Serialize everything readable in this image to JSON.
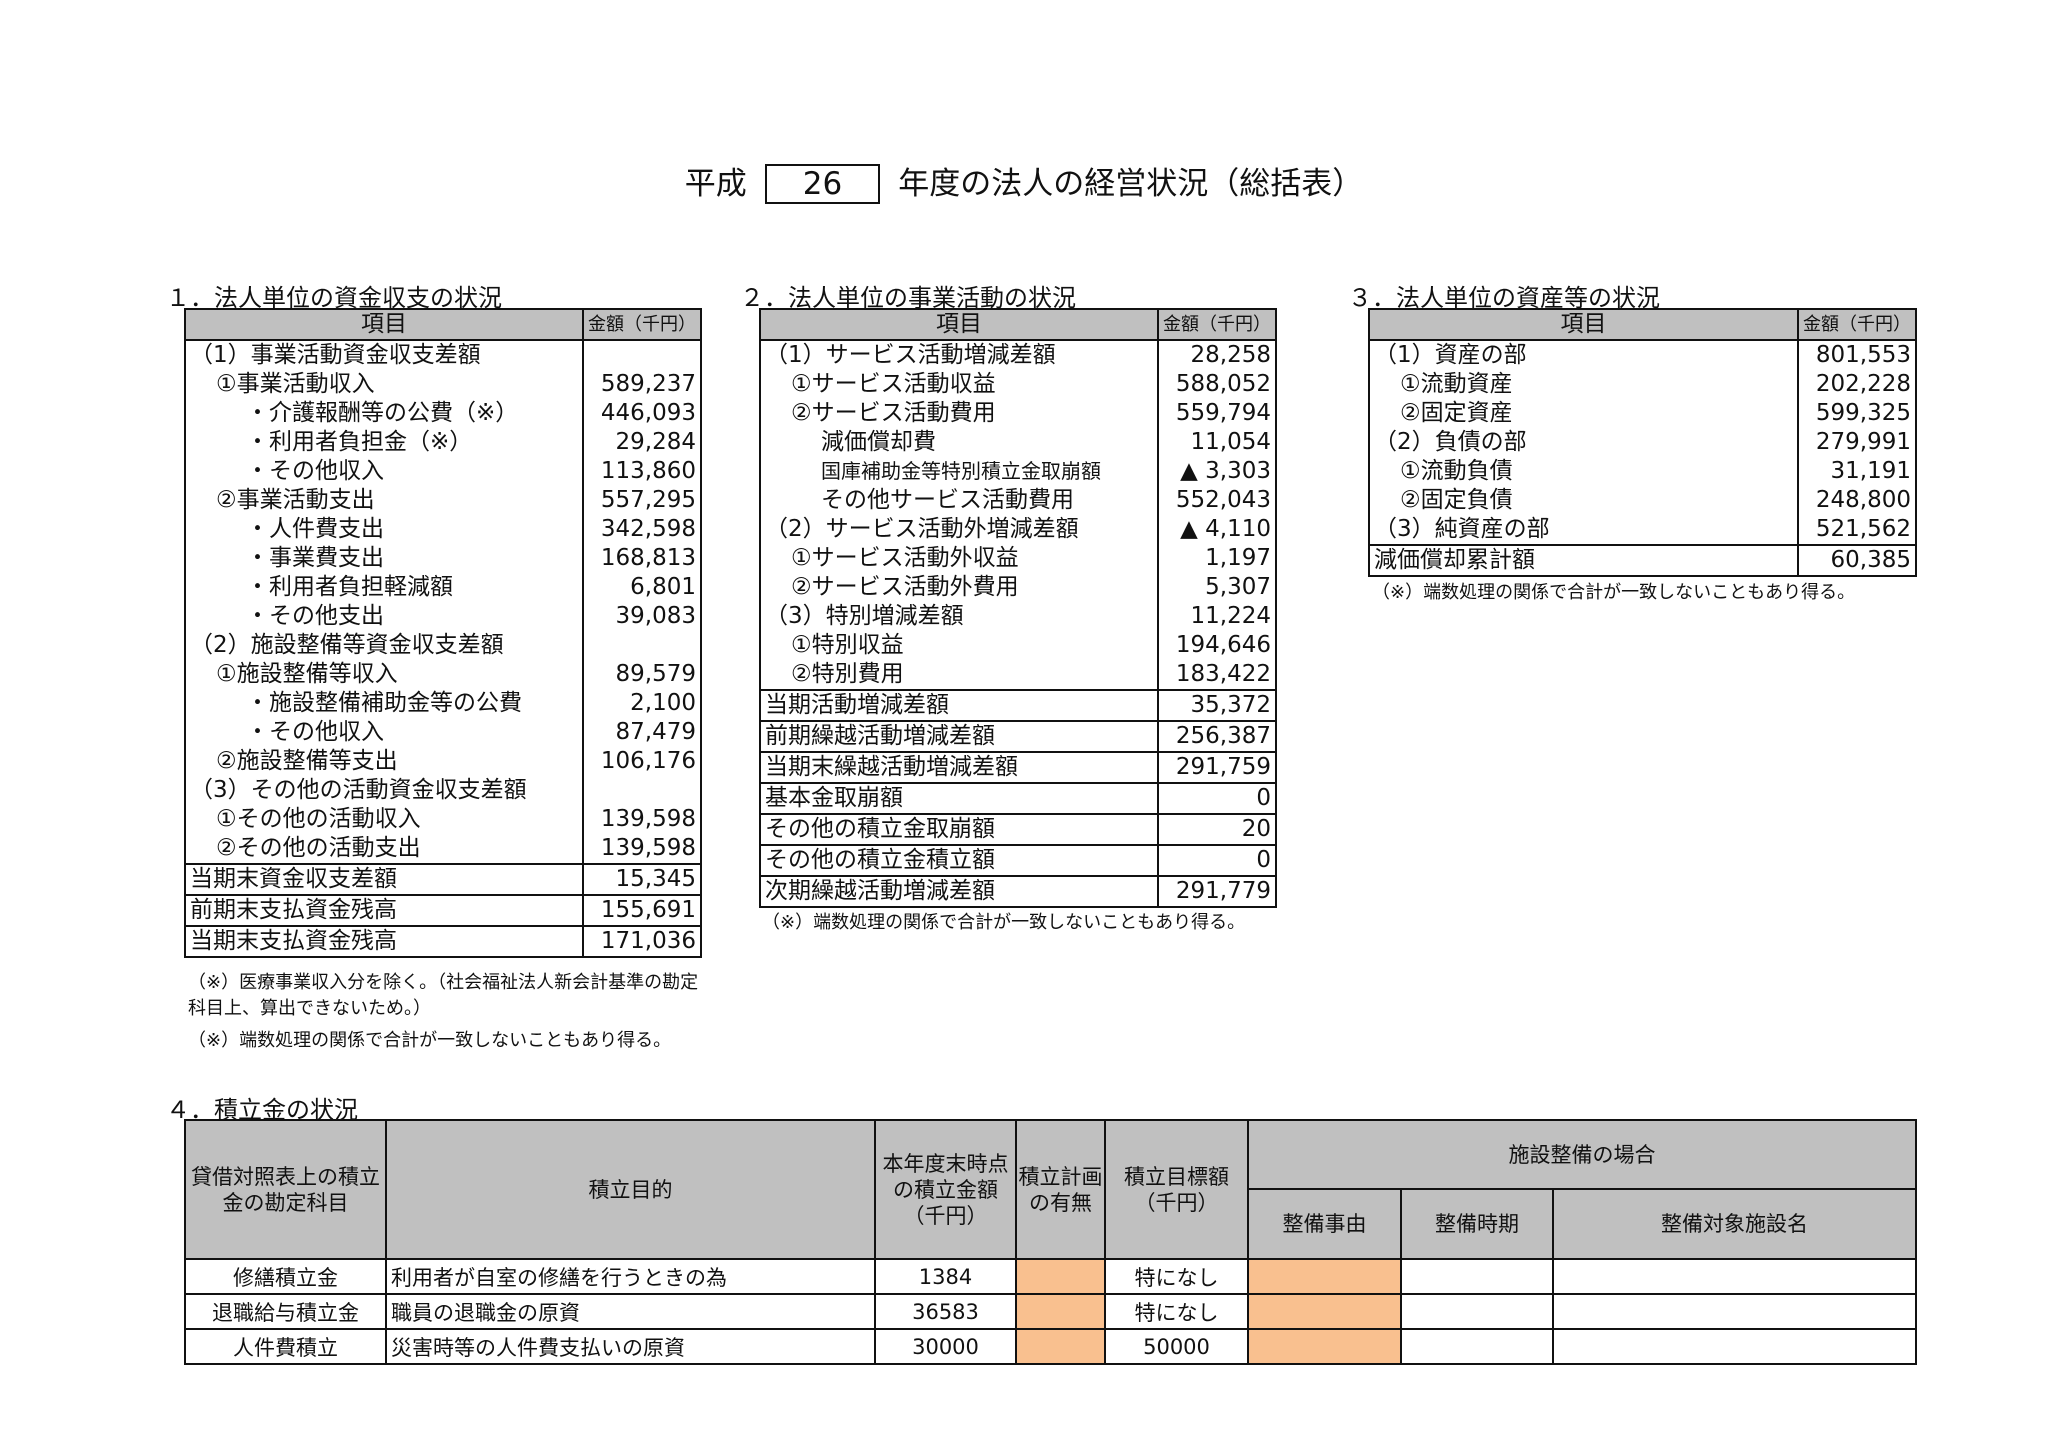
{
  "title": {
    "prefix": "平成",
    "year": "26",
    "suffix": "年度の法人の経営状況（総括表）"
  },
  "s1": {
    "heading": "１．法人単位の資金収支の状況",
    "col_item": "項目",
    "col_amount": "金額（千円）",
    "rows": [
      {
        "label": "（1）事業活動資金収支差額",
        "value": ""
      },
      {
        "label": "①事業活動収入",
        "value": "589,237"
      },
      {
        "label": "・介護報酬等の公費（※）",
        "value": "446,093"
      },
      {
        "label": "・利用者負担金（※）",
        "value": "29,284"
      },
      {
        "label": "・その他収入",
        "value": "113,860"
      },
      {
        "label": "②事業活動支出",
        "value": "557,295"
      },
      {
        "label": "・人件費支出",
        "value": "342,598"
      },
      {
        "label": "・事業費支出",
        "value": "168,813"
      },
      {
        "label": "・利用者負担軽減額",
        "value": "6,801"
      },
      {
        "label": "・その他支出",
        "value": "39,083"
      },
      {
        "label": "（2）施設整備等資金収支差額",
        "value": ""
      },
      {
        "label": "①施設整備等収入",
        "value": "89,579"
      },
      {
        "label": "・施設整備補助金等の公費",
        "value": "2,100"
      },
      {
        "label": "・その他収入",
        "value": "87,479"
      },
      {
        "label": "②施設整備等支出",
        "value": "106,176"
      },
      {
        "label": "（3）その他の活動資金収支差額",
        "value": ""
      },
      {
        "label": "①その他の活動収入",
        "value": "139,598"
      },
      {
        "label": "②その他の活動支出",
        "value": "139,598"
      },
      {
        "label": "当期末資金収支差額",
        "value": "15,345"
      },
      {
        "label": "前期末支払資金残高",
        "value": "155,691"
      },
      {
        "label": "当期末支払資金残高",
        "value": "171,036"
      }
    ],
    "note1": "（※）医療事業収入分を除く。（社会福祉法人新会計基準の勘定科目上、算出できないため。）",
    "note2": "（※）端数処理の関係で合計が一致しないこともあり得る。"
  },
  "s2": {
    "heading": "２．法人単位の事業活動の状況",
    "col_item": "項目",
    "col_amount": "金額（千円）",
    "rows": [
      {
        "label": "（1）サービス活動増減差額",
        "value": "28,258"
      },
      {
        "label": "①サービス活動収益",
        "value": "588,052"
      },
      {
        "label": "②サービス活動費用",
        "value": "559,794"
      },
      {
        "label": "減価償却費",
        "value": "11,054"
      },
      {
        "label": "国庫補助金等特別積立金取崩額",
        "value": "▲ 3,303"
      },
      {
        "label": "その他サービス活動費用",
        "value": "552,043"
      },
      {
        "label": "（2）サービス活動外増減差額",
        "value": "▲ 4,110"
      },
      {
        "label": "①サービス活動外収益",
        "value": "1,197"
      },
      {
        "label": "②サービス活動外費用",
        "value": "5,307"
      },
      {
        "label": "（3）特別増減差額",
        "value": "11,224"
      },
      {
        "label": "①特別収益",
        "value": "194,646"
      },
      {
        "label": "②特別費用",
        "value": "183,422"
      },
      {
        "label": "当期活動増減差額",
        "value": "35,372"
      },
      {
        "label": "前期繰越活動増減差額",
        "value": "256,387"
      },
      {
        "label": "当期末繰越活動増減差額",
        "value": "291,759"
      },
      {
        "label": "基本金取崩額",
        "value": "0"
      },
      {
        "label": "その他の積立金取崩額",
        "value": "20"
      },
      {
        "label": "その他の積立金積立額",
        "value": "0"
      },
      {
        "label": "次期繰越活動増減差額",
        "value": "291,779"
      }
    ],
    "note": "（※）端数処理の関係で合計が一致しないこともあり得る。"
  },
  "s3": {
    "heading": "３．法人単位の資産等の状況",
    "col_item": "項目",
    "col_amount": "金額（千円）",
    "rows": [
      {
        "label": "（1）資産の部",
        "value": "801,553"
      },
      {
        "label": "①流動資産",
        "value": "202,228"
      },
      {
        "label": "②固定資産",
        "value": "599,325"
      },
      {
        "label": "（2）負債の部",
        "value": "279,991"
      },
      {
        "label": "①流動負債",
        "value": "31,191"
      },
      {
        "label": "②固定負債",
        "value": "248,800"
      },
      {
        "label": "（3）純資産の部",
        "value": "521,562"
      },
      {
        "label": "減価償却累計額",
        "value": "60,385"
      }
    ],
    "note": "（※）端数処理の関係で合計が一致しないこともあり得る。"
  },
  "s4": {
    "heading": "４．積立金の状況",
    "headers": {
      "account": "貸借対照表上の積立金の勘定科目",
      "purpose": "積立目的",
      "balance": "本年度末時点の積立金額（千円）",
      "plan": "積立計画の有無",
      "target": "積立目標額（千円）",
      "facility": "施設整備の場合",
      "reason": "整備事由",
      "period": "整備時期",
      "facility_name": "整備対象施設名"
    },
    "rows": [
      {
        "account": "修繕積立金",
        "purpose": "利用者が自室の修繕を行うときの為",
        "balance": "1384",
        "plan": "",
        "target": "特になし",
        "reason": "",
        "period": "",
        "facility_name": ""
      },
      {
        "account": "退職給与積立金",
        "purpose": "職員の退職金の原資",
        "balance": "36583",
        "plan": "",
        "target": "特になし",
        "reason": "",
        "period": "",
        "facility_name": ""
      },
      {
        "account": "人件費積立",
        "purpose": "災害時等の人件費支払いの原資",
        "balance": "30000",
        "plan": "",
        "target": "50000",
        "reason": "",
        "period": "",
        "facility_name": ""
      }
    ],
    "highlight_color": "#f9c08f"
  }
}
